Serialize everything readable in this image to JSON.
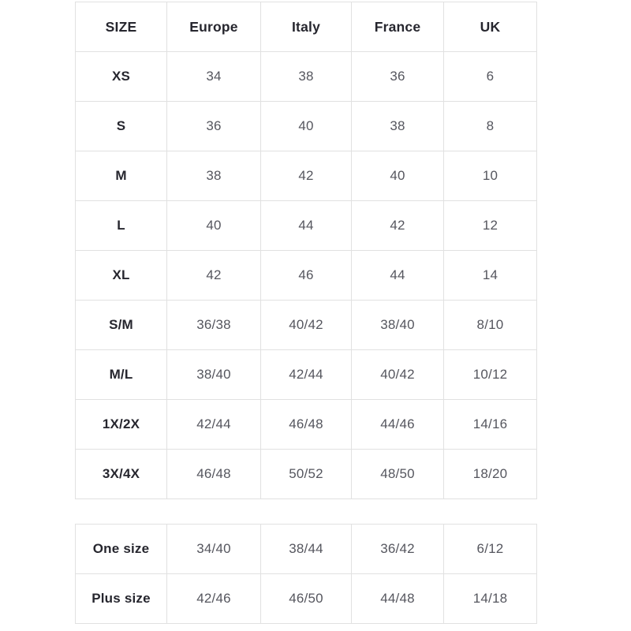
{
  "colors": {
    "background": "#ffffff",
    "border": "#e1e1e1",
    "label_text": "#26262e",
    "value_text": "#55565e"
  },
  "main_table": {
    "headers": [
      "SIZE",
      "Europe",
      "Italy",
      "France",
      "UK"
    ],
    "rows": [
      {
        "label": "XS",
        "values": [
          "34",
          "38",
          "36",
          "6"
        ]
      },
      {
        "label": "S",
        "values": [
          "36",
          "40",
          "38",
          "8"
        ]
      },
      {
        "label": "M",
        "values": [
          "38",
          "42",
          "40",
          "10"
        ]
      },
      {
        "label": "L",
        "values": [
          "40",
          "44",
          "42",
          "12"
        ]
      },
      {
        "label": "XL",
        "values": [
          "42",
          "46",
          "44",
          "14"
        ]
      },
      {
        "label": "S/M",
        "values": [
          "36/38",
          "40/42",
          "38/40",
          "8/10"
        ]
      },
      {
        "label": "M/L",
        "values": [
          "38/40",
          "42/44",
          "40/42",
          "10/12"
        ]
      },
      {
        "label": "1X/2X",
        "values": [
          "42/44",
          "46/48",
          "44/46",
          "14/16"
        ]
      },
      {
        "label": "3X/4X",
        "values": [
          "46/48",
          "50/52",
          "48/50",
          "18/20"
        ]
      }
    ]
  },
  "extra_table": {
    "rows": [
      {
        "label": "One size",
        "values": [
          "34/40",
          "38/44",
          "36/42",
          "6/12"
        ]
      },
      {
        "label": "Plus size",
        "values": [
          "42/46",
          "46/50",
          "44/48",
          "14/18"
        ]
      }
    ]
  }
}
